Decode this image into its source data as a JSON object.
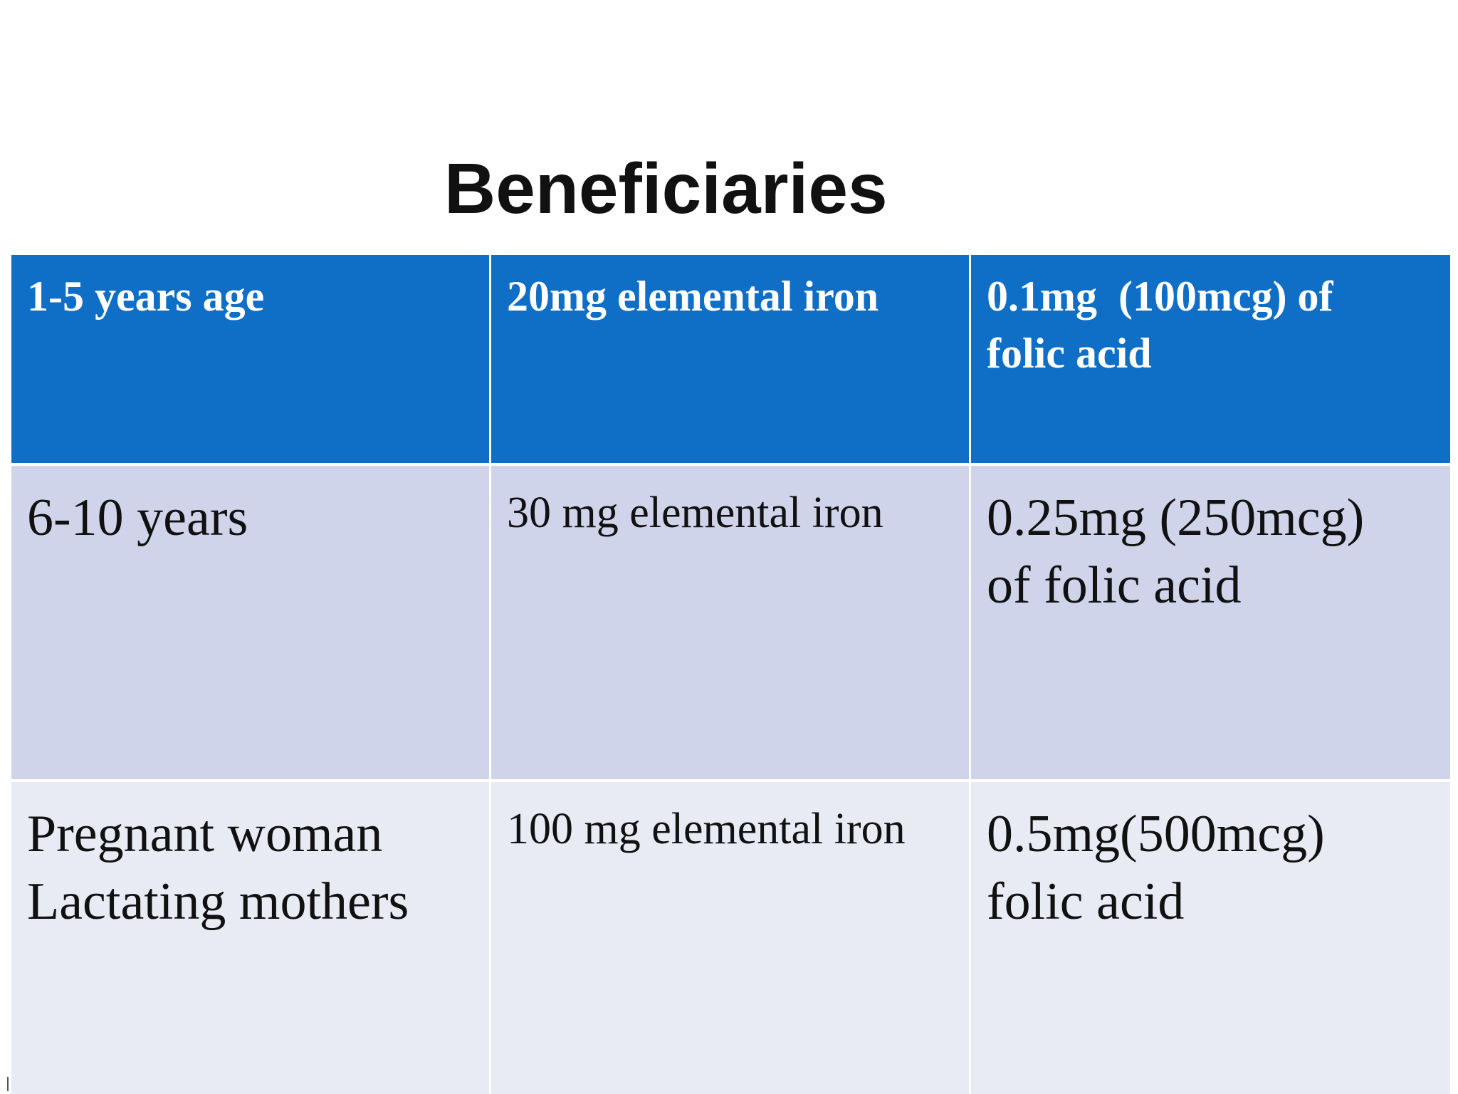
{
  "slide": {
    "title": "Beneficiaries"
  },
  "table": {
    "rows": [
      {
        "group": "1-5 years age",
        "iron": "20mg elemental iron",
        "folic_line1": "0.1mg  (100mcg) of",
        "folic_line2": "folic acid"
      },
      {
        "group": "6-10 years",
        "iron": "30 mg elemental iron",
        "folic_line1": "0.25mg (250mcg)",
        "folic_line2": "of folic acid"
      },
      {
        "group_line1": "Pregnant woman",
        "group_line2": "Lactating mothers",
        "iron": "100 mg elemental iron",
        "folic_line1": "0.5mg(500mcg)",
        "folic_line2": "folic acid"
      }
    ]
  },
  "colors": {
    "header_bg": "#0f6fc6",
    "row1_bg": "#cfd4ea",
    "row2_bg": "#e8eaf4"
  }
}
